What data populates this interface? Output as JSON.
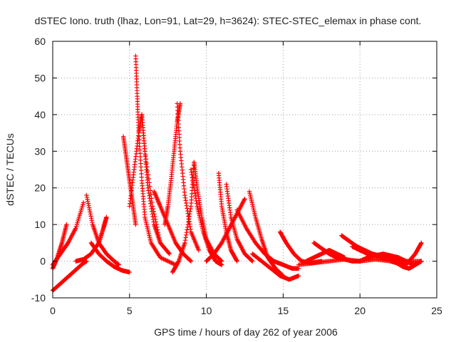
{
  "chart_data": {
    "type": "scatter",
    "title": "dSTEC Iono. truth (lhaz, Lon=91, Lat=29, h=3624): STEC-STEC_elemax in phase cont.",
    "xlabel": "GPS time / hours of day 262 of year 2006",
    "ylabel": "dSTEC  / TECUs",
    "xlim": [
      0,
      25
    ],
    "ylim": [
      -10,
      60
    ],
    "xticks": [
      0,
      5,
      10,
      15,
      20,
      25
    ],
    "yticks": [
      -10,
      0,
      10,
      20,
      30,
      40,
      50,
      60
    ],
    "grid": true,
    "marker": "plus",
    "color": "#ff0000",
    "series": [
      {
        "x": [
          0.0,
          0.4,
          0.8,
          1.2,
          1.6,
          2.0,
          2.2
        ],
        "y": [
          -8,
          -6.5,
          -5,
          -3.5,
          -2,
          -0.5,
          0
        ]
      },
      {
        "x": [
          0.0,
          0.3,
          0.6,
          0.9
        ],
        "y": [
          -2,
          1,
          5,
          10
        ]
      },
      {
        "x": [
          0.0,
          0.5,
          1.0,
          1.5,
          2.0
        ],
        "y": [
          -1,
          2,
          5,
          9,
          16
        ]
      },
      {
        "x": [
          2.2,
          2.6,
          3.0,
          3.5,
          4.0,
          4.3
        ],
        "y": [
          18,
          10,
          5,
          2,
          0,
          -1
        ]
      },
      {
        "x": [
          1.5,
          2.0,
          2.5,
          3.0,
          3.3,
          3.5
        ],
        "y": [
          0,
          0.5,
          2,
          5,
          9,
          12
        ]
      },
      {
        "x": [
          2.5,
          3.0,
          3.5,
          4.0,
          4.5,
          5.0
        ],
        "y": [
          5,
          2,
          0,
          -1.5,
          -2.5,
          -3
        ]
      },
      {
        "x": [
          4.6,
          4.8,
          5.0,
          5.2,
          5.4
        ],
        "y": [
          34,
          28,
          22,
          16,
          10
        ]
      },
      {
        "x": [
          5.4,
          5.5,
          5.6,
          5.8,
          6.0,
          6.4,
          7.0,
          8.0
        ],
        "y": [
          56,
          45,
          35,
          22,
          12,
          5,
          1,
          -1
        ]
      },
      {
        "x": [
          5.0,
          5.3,
          5.6,
          5.8,
          6.0,
          6.5,
          7.0
        ],
        "y": [
          15,
          25,
          35,
          40,
          30,
          15,
          5
        ]
      },
      {
        "x": [
          5.8,
          6.0,
          6.2,
          6.6,
          7.0,
          7.6
        ],
        "y": [
          40,
          30,
          20,
          10,
          5,
          2
        ]
      },
      {
        "x": [
          6.6,
          7.0,
          7.5,
          8.0,
          8.5,
          9.0
        ],
        "y": [
          19,
          15,
          10,
          5,
          2,
          0
        ]
      },
      {
        "x": [
          7.3,
          7.5,
          7.7,
          7.9,
          8.1,
          8.3
        ],
        "y": [
          10,
          15,
          22,
          30,
          38,
          43
        ]
      },
      {
        "x": [
          8.1,
          8.3,
          8.6,
          9.0,
          9.5
        ],
        "y": [
          43,
          30,
          18,
          8,
          3
        ]
      },
      {
        "x": [
          7.8,
          8.2,
          8.6,
          9.0,
          9.2
        ],
        "y": [
          -3,
          0,
          5,
          15,
          27
        ]
      },
      {
        "x": [
          9.2,
          9.4,
          9.7,
          10.0,
          10.5,
          11.0
        ],
        "y": [
          27,
          20,
          12,
          6,
          2,
          0
        ]
      },
      {
        "x": [
          9.0,
          9.4,
          9.8,
          10.2,
          10.6,
          11.0
        ],
        "y": [
          25,
          15,
          8,
          3,
          0,
          -1
        ]
      },
      {
        "x": [
          10.8,
          11.0,
          11.3,
          11.6,
          12.0
        ],
        "y": [
          24,
          15,
          8,
          3,
          0
        ]
      },
      {
        "x": [
          11.3,
          11.6,
          12.0,
          12.5,
          13.0
        ],
        "y": [
          21,
          12,
          6,
          2,
          0
        ]
      },
      {
        "x": [
          10.0,
          10.5,
          11.0,
          11.5,
          12.0,
          12.5
        ],
        "y": [
          0,
          2,
          5,
          9,
          13,
          17
        ]
      },
      {
        "x": [
          12.8,
          13.2,
          13.6,
          14.0,
          14.5,
          15.0
        ],
        "y": [
          19,
          12,
          6,
          1,
          -2,
          -4
        ]
      },
      {
        "x": [
          12.0,
          12.6,
          13.2,
          13.8,
          14.4,
          15.0,
          15.6,
          16.0
        ],
        "y": [
          14,
          9,
          5,
          2,
          0,
          -1,
          -2,
          -2
        ]
      },
      {
        "x": [
          14.8,
          15.2,
          15.7,
          16.2,
          16.8,
          17.5
        ],
        "y": [
          8,
          5,
          2,
          0,
          -0.5,
          0
        ]
      },
      {
        "x": [
          13.0,
          13.6,
          14.2,
          14.8,
          15.4,
          16.0
        ],
        "y": [
          2,
          0,
          -2,
          -4,
          -5,
          -4
        ]
      },
      {
        "x": [
          16.5,
          17.0,
          17.5,
          18.0,
          18.5,
          19.0
        ],
        "y": [
          0,
          1,
          2,
          3,
          2,
          1
        ]
      },
      {
        "x": [
          17.0,
          17.5,
          18.0,
          18.5,
          19.0,
          19.5,
          20.0
        ],
        "y": [
          5,
          3.5,
          2,
          1,
          0.5,
          0,
          0
        ]
      },
      {
        "x": [
          18.8,
          19.3,
          19.8,
          20.3,
          20.8,
          21.3,
          22.0
        ],
        "y": [
          7,
          5.5,
          4,
          3,
          2,
          1.5,
          1
        ]
      },
      {
        "x": [
          19.5,
          20.0,
          20.5,
          21.0,
          21.5,
          22.0,
          22.5,
          23.0
        ],
        "y": [
          4,
          3,
          2,
          1.5,
          1,
          0.5,
          0,
          -1
        ]
      },
      {
        "x": [
          20.0,
          20.5,
          21.0,
          21.5,
          22.0,
          22.5,
          23.0,
          23.5,
          24.0
        ],
        "y": [
          0,
          1,
          1.5,
          2,
          1.5,
          1,
          0,
          -1,
          0
        ]
      },
      {
        "x": [
          22.0,
          22.4,
          22.8,
          23.2,
          23.6,
          24.0
        ],
        "y": [
          0,
          -0.5,
          -1.5,
          -2,
          -1,
          0
        ]
      },
      {
        "x": [
          22.8,
          23.2,
          23.6,
          24.0
        ],
        "y": [
          -1,
          0,
          2,
          5
        ]
      },
      {
        "x": [
          16.0,
          17.0,
          18.0,
          19.0,
          20.0,
          21.0,
          22.0,
          23.0,
          24.0
        ],
        "y": [
          -1,
          -0.5,
          0,
          0.5,
          0,
          0.5,
          0,
          0,
          0
        ]
      }
    ]
  }
}
